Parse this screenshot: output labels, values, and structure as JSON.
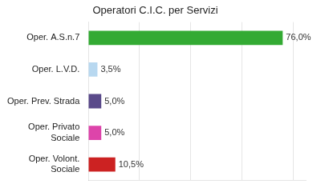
{
  "chart_data": {
    "type": "bar",
    "orientation": "horizontal",
    "title": "Operatori C.I.C. per Servizi",
    "categories": [
      "Oper. A.S.n.7",
      "Oper. L.V.D.",
      "Oper. Prev. Strada",
      "Oper. Privato\nSociale",
      "Oper. Volont.\nSociale"
    ],
    "values": [
      76.0,
      3.5,
      5.0,
      5.0,
      10.5
    ],
    "value_labels": [
      "76,0%",
      "3,5%",
      "5,0%",
      "5,0%",
      "10,5%"
    ],
    "colors": [
      "#33aa33",
      "#b8d8f0",
      "#5a4a8a",
      "#dd44aa",
      "#cc2222"
    ],
    "xlim": [
      0,
      85
    ],
    "xticks": [
      20,
      40,
      60,
      80
    ],
    "grid": true,
    "data_labels": true,
    "tick_labels": "y"
  }
}
